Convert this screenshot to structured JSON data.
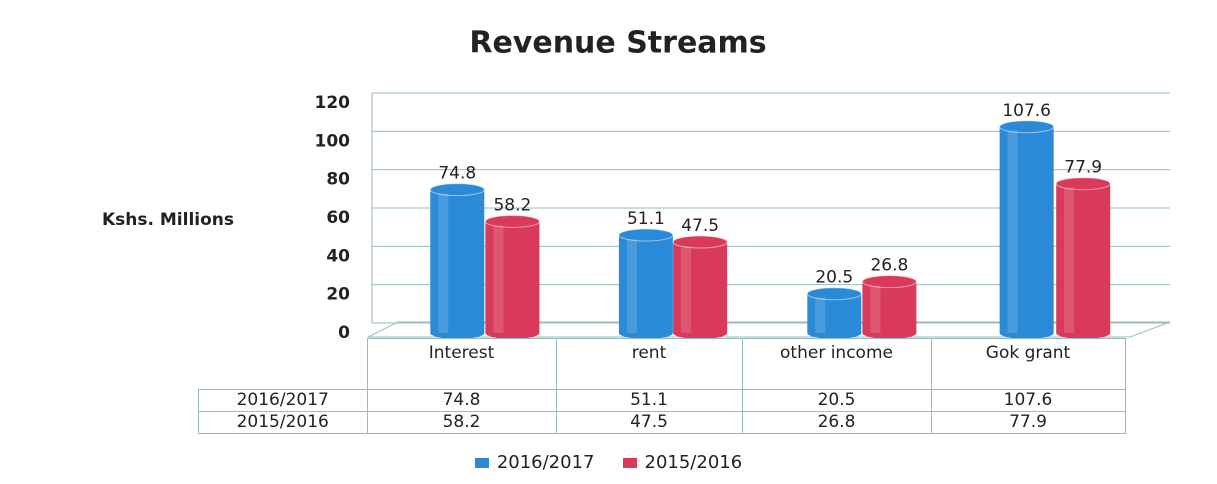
{
  "chart_data": {
    "type": "bar",
    "title": "Revenue Streams",
    "y_label": "Kshs. Millions",
    "categories": [
      "Interest",
      "rent",
      "other income",
      "Gok grant"
    ],
    "series": [
      {
        "name": "2016/2017",
        "color": "#2b8ad8",
        "values": [
          74.8,
          51.1,
          20.5,
          107.6
        ]
      },
      {
        "name": "2015/2016",
        "color": "#d93a5a",
        "values": [
          58.2,
          47.5,
          26.8,
          77.9
        ]
      }
    ],
    "ylim": [
      0,
      120
    ],
    "yticks": [
      0,
      20,
      40,
      60,
      80,
      100,
      120
    ],
    "grid": true
  }
}
